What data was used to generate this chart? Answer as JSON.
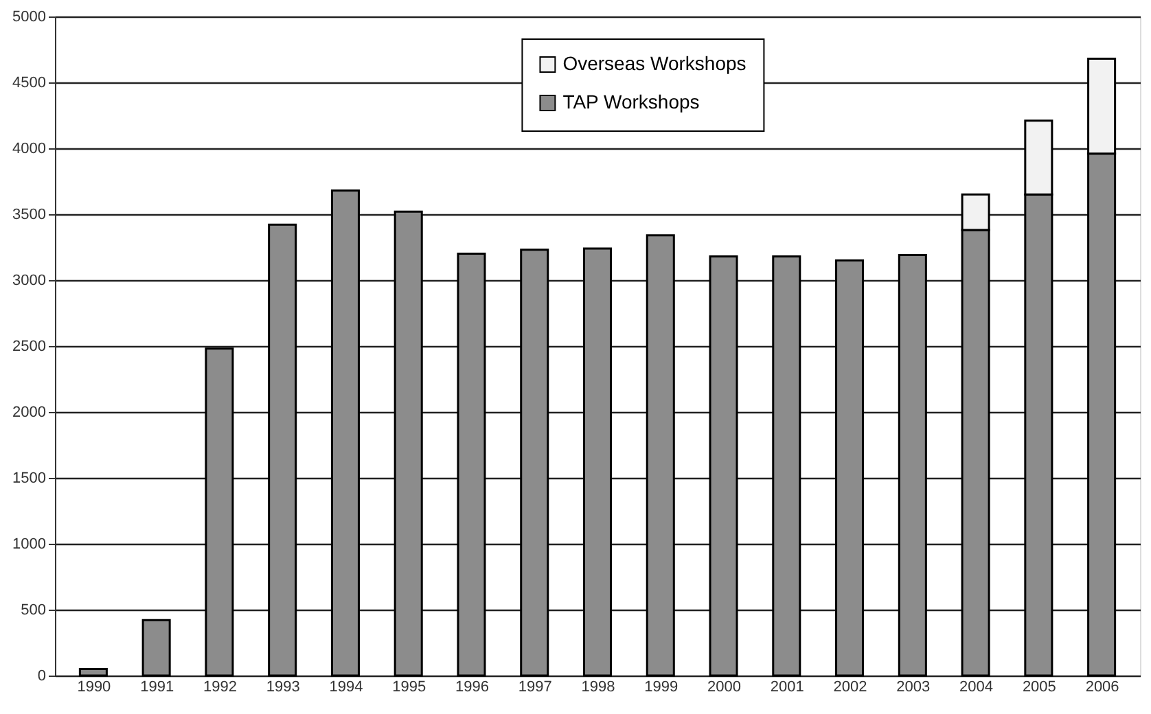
{
  "chart_data": {
    "type": "bar",
    "stacked": true,
    "categories": [
      "1990",
      "1991",
      "1992",
      "1993",
      "1994",
      "1995",
      "1996",
      "1997",
      "1998",
      "1999",
      "2000",
      "2001",
      "2002",
      "2003",
      "2004",
      "2005",
      "2006"
    ],
    "series": [
      {
        "name": "TAP Workshops",
        "color": "#8c8c8c",
        "values": [
          50,
          420,
          2480,
          3420,
          3680,
          3520,
          3200,
          3230,
          3240,
          3340,
          3180,
          3180,
          3150,
          3190,
          3380,
          3650,
          3960
        ]
      },
      {
        "name": "Overseas Workshops",
        "color": "#f2f2f2",
        "values": [
          null,
          null,
          null,
          null,
          null,
          null,
          null,
          null,
          null,
          null,
          null,
          null,
          null,
          null,
          270,
          560,
          720
        ]
      }
    ],
    "ylim": [
      0,
      5000
    ],
    "yticks": [
      0,
      500,
      1000,
      1500,
      2000,
      2500,
      3000,
      3500,
      4000,
      4500,
      5000
    ],
    "grid": "y",
    "legend": "top"
  }
}
